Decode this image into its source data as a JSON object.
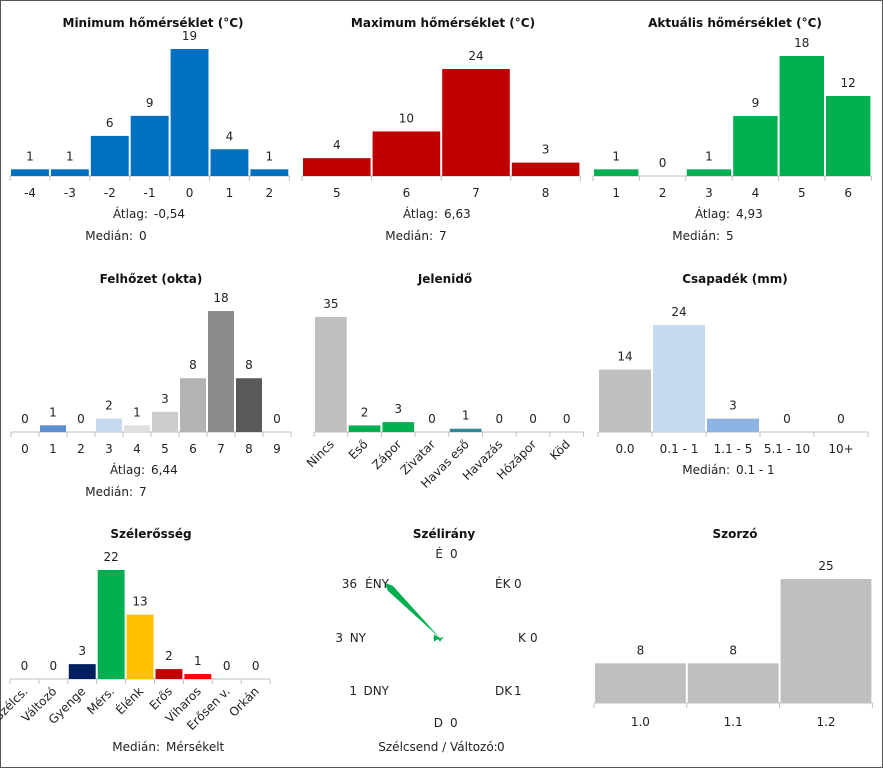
{
  "chart_data": [
    {
      "type": "bar",
      "title": "Minimum hőmérséklet (°C)",
      "categories": [
        "-4",
        "-3",
        "-2",
        "-1",
        "0",
        "1",
        "2"
      ],
      "values": [
        1,
        1,
        6,
        9,
        19,
        4,
        1
      ],
      "colors": [
        "#0070c0"
      ],
      "ylim": [
        0,
        19
      ],
      "stats": [
        {
          "label": "Átlag:",
          "value": "-0,54"
        },
        {
          "label": "Medián:",
          "value": "0"
        }
      ]
    },
    {
      "type": "bar",
      "title": "Maximum hőmérséklet (°C)",
      "categories": [
        "5",
        "6",
        "7",
        "8"
      ],
      "values": [
        4,
        10,
        24,
        3
      ],
      "colors": [
        "#c00000"
      ],
      "ylim": [
        0,
        24
      ],
      "stats": [
        {
          "label": "Átlag:",
          "value": "6,63"
        },
        {
          "label": "Medián:",
          "value": "7"
        }
      ]
    },
    {
      "type": "bar",
      "title": "Aktuális hőmérséklet (°C)",
      "categories": [
        "1",
        "2",
        "3",
        "4",
        "5",
        "6"
      ],
      "values": [
        1,
        0,
        1,
        9,
        18,
        12
      ],
      "colors": [
        "#00b050"
      ],
      "ylim": [
        0,
        18
      ],
      "stats": [
        {
          "label": "Átlag:",
          "value": "4,93"
        },
        {
          "label": "Medián:",
          "value": "5"
        }
      ]
    },
    {
      "type": "bar",
      "title": "Felhőzet (okta)",
      "categories": [
        "0",
        "1",
        "2",
        "3",
        "4",
        "5",
        "6",
        "7",
        "8",
        "9"
      ],
      "values": [
        0,
        1,
        0,
        2,
        1,
        3,
        8,
        18,
        8,
        0
      ],
      "colors": [
        "#ffffff",
        "#5b8fd4",
        "#ffffff",
        "#c6d9f1",
        "#e0e0e0",
        "#cccccc",
        "#b3b3b3",
        "#8c8c8c",
        "#595959",
        "#ffffff"
      ],
      "ylim": [
        0,
        18
      ],
      "stats": [
        {
          "label": "Átlag:",
          "value": "6,44"
        },
        {
          "label": "Medián:",
          "value": "7"
        }
      ]
    },
    {
      "type": "bar",
      "title": "Jelenidő",
      "categories": [
        "Nincs",
        "Eső",
        "Zápor",
        "Zivatar",
        "Havas eső",
        "Havazás",
        "Hózápor",
        "Köd"
      ],
      "values": [
        35,
        2,
        3,
        0,
        1,
        0,
        0,
        0
      ],
      "colors": [
        "#bfbfbf",
        "#00b050",
        "#00b050",
        "#bfbfbf",
        "#31869b",
        "#bfbfbf",
        "#bfbfbf",
        "#bfbfbf"
      ],
      "ylim": [
        0,
        35
      ],
      "stats": []
    },
    {
      "type": "bar",
      "title": "Csapadék (mm)",
      "categories": [
        "0.0",
        "0.1 - 1",
        "1.1 - 5",
        "5.1 - 10",
        "10+"
      ],
      "values": [
        14,
        24,
        3,
        0,
        0
      ],
      "colors": [
        "#bfbfbf",
        "#c6d9f1",
        "#8db4e2",
        "#bfbfbf",
        "#bfbfbf"
      ],
      "ylim": [
        0,
        24
      ],
      "stats": [
        {
          "label": "Medián:",
          "value": "0.1 - 1"
        }
      ]
    },
    {
      "type": "bar",
      "title": "Szélerősség",
      "categories": [
        "Szélcs.",
        "Változó",
        "Gyenge",
        "Mérs.",
        "Élénk",
        "Erős",
        "Viharos",
        "Erősen v.",
        "Orkán"
      ],
      "values": [
        0,
        0,
        3,
        22,
        13,
        2,
        1,
        0,
        0
      ],
      "colors": [
        "#ffffff",
        "#ffffff",
        "#002060",
        "#00b050",
        "#ffc000",
        "#c00000",
        "#ff0000",
        "#ffffff",
        "#ffffff"
      ],
      "ylim": [
        0,
        22
      ],
      "stats": [
        {
          "label": "Medián:",
          "value": "Mérsékelt"
        }
      ]
    },
    {
      "type": "wind-rose",
      "title": "Szélirány",
      "directions": [
        {
          "name": "É",
          "count": 0
        },
        {
          "name": "ÉK",
          "count": 0
        },
        {
          "name": "K",
          "count": 0
        },
        {
          "name": "DK",
          "count": 1
        },
        {
          "name": "D",
          "count": 0
        },
        {
          "name": "DNY",
          "count": 1
        },
        {
          "name": "NY",
          "count": 3
        },
        {
          "name": "ÉNY",
          "count": 36
        }
      ],
      "max": 36,
      "color": "#00b050",
      "footer_label": "Szélcsend / Változó:",
      "footer_value": "0"
    },
    {
      "type": "bar",
      "title": "Szorzó",
      "categories": [
        "1.0",
        "1.1",
        "1.2"
      ],
      "values": [
        8,
        8,
        25
      ],
      "colors": [
        "#bfbfbf"
      ],
      "ylim": [
        0,
        25
      ],
      "stats": []
    }
  ]
}
